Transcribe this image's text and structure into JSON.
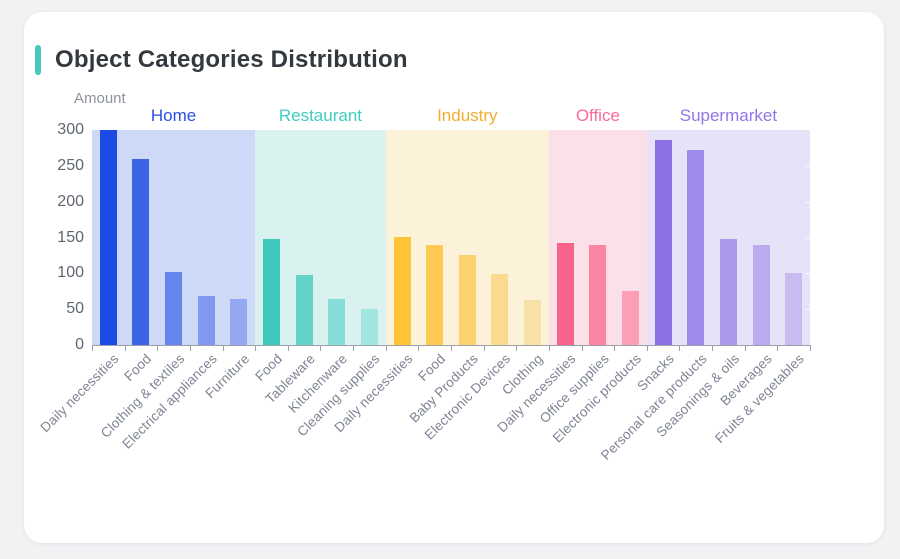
{
  "card": {
    "title": "Object Categories Distribution"
  },
  "colors": {
    "page_background": "#F1F2F4",
    "card_background": "#FFFFFF",
    "title_accent": "#45C8BC",
    "title_text": "#34383F",
    "axis_line": "#9CA1A8",
    "y_tick_text": "#5F6672",
    "x_tick_text": "#7E8494",
    "axis_name_text": "#8E939C"
  },
  "chart_data": {
    "type": "bar",
    "title": "Object Categories Distribution",
    "ylabel": "Amount",
    "xlabel": "",
    "ylim": [
      0,
      300
    ],
    "yticks": [
      0,
      50,
      100,
      150,
      200,
      250,
      300
    ],
    "grid": false,
    "legend_position": "none",
    "groups": [
      {
        "name": "Home",
        "label_color": "#2A4FE0",
        "band_color": "#CED9F7",
        "bars": [
          {
            "label": "Daily necessities",
            "value": 300,
            "color": "#1C4AE4"
          },
          {
            "label": "Food",
            "value": 259,
            "color": "#3D64E6"
          },
          {
            "label": "Clothing & textiles",
            "value": 102,
            "color": "#6485EC"
          },
          {
            "label": "Electrical appliances",
            "value": 69,
            "color": "#7E99EF"
          },
          {
            "label": "Furniture",
            "value": 64,
            "color": "#93A8F1"
          }
        ]
      },
      {
        "name": "Restaurant",
        "label_color": "#40CCC0",
        "band_color": "#D9F2EF",
        "bars": [
          {
            "label": "Food",
            "value": 148,
            "color": "#3FC9BD"
          },
          {
            "label": "Tableware",
            "value": 97,
            "color": "#63D2C8"
          },
          {
            "label": "Kitchenware",
            "value": 64,
            "color": "#86DDD5"
          },
          {
            "label": "Cleaning supplies",
            "value": 50,
            "color": "#A0E5DF"
          }
        ]
      },
      {
        "name": "Industry",
        "label_color": "#EFAF2E",
        "band_color": "#FCF2D9",
        "bars": [
          {
            "label": "Daily necessities",
            "value": 151,
            "color": "#FFC337"
          },
          {
            "label": "Food",
            "value": 139,
            "color": "#FECA52"
          },
          {
            "label": "Baby Products",
            "value": 126,
            "color": "#FCD26F"
          },
          {
            "label": "Electronic Devices",
            "value": 99,
            "color": "#FADA8E"
          },
          {
            "label": "Clothing",
            "value": 63,
            "color": "#F8E1A6"
          }
        ]
      },
      {
        "name": "Office",
        "label_color": "#FA6B96",
        "band_color": "#FCE0E9",
        "bars": [
          {
            "label": "Daily necessities",
            "value": 142,
            "color": "#FA6389"
          },
          {
            "label": "Office supplies",
            "value": 139,
            "color": "#FB85A1"
          },
          {
            "label": "Electronic products",
            "value": 75,
            "color": "#FC9FB5"
          }
        ]
      },
      {
        "name": "Supermarket",
        "label_color": "#8F76E8",
        "band_color": "#E6E2F8",
        "bars": [
          {
            "label": "Snacks",
            "value": 286,
            "color": "#8A70E2"
          },
          {
            "label": "Personal care products",
            "value": 272,
            "color": "#9F8AE9"
          },
          {
            "label": "Seasonings & oils",
            "value": 148,
            "color": "#AC99EC"
          },
          {
            "label": "Beverages",
            "value": 140,
            "color": "#BCABEF"
          },
          {
            "label": "Fruits & vegetables",
            "value": 100,
            "color": "#C9BBF1"
          }
        ]
      }
    ]
  }
}
